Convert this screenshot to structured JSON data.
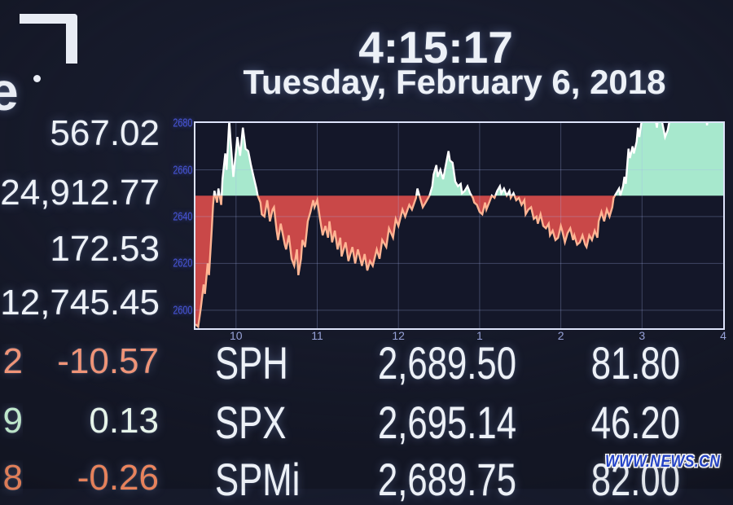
{
  "header": {
    "time": "4:15:17",
    "date": "Tuesday, February 6, 2018"
  },
  "logo": {
    "partial_letter": "e",
    "name": "nyse-logo-fragment"
  },
  "left_stats": [
    {
      "value": "567.02"
    },
    {
      "value": "24,912.77"
    },
    {
      "value": "172.53"
    },
    {
      "value": "12,745.45"
    }
  ],
  "left_changes": [
    {
      "partial": "2",
      "value": "-10.57",
      "tone": "salmon"
    },
    {
      "partial": "9",
      "value": "0.13",
      "tone": "up"
    },
    {
      "partial": "8",
      "value": "-0.26",
      "tone": "orange"
    }
  ],
  "quotes": {
    "rows": [
      {
        "symbol": "SPH",
        "last": "2,689.50",
        "change": "81.80"
      },
      {
        "symbol": "SPX",
        "last": "2,695.14",
        "change": "46.20"
      },
      {
        "symbol": "SPMi",
        "last": "2,689.75",
        "change": "82.00"
      }
    ]
  },
  "watermark": "WWW.NEWS.CN",
  "colors": {
    "background": "#131624",
    "text_white": "#edf1f7",
    "negative_salmon": "#ef9478",
    "negative_orange": "#f0875f",
    "positive_green_white": "#e6f4ea",
    "axis_y_blue": "#4754d6",
    "axis_x_lavender": "#97a2d8",
    "watermark_blue": "#2545cc"
  },
  "chart_data": {
    "type": "area",
    "title": "",
    "xlabel": "",
    "ylabel": "",
    "x_axis": {
      "labels": [
        "10",
        "11",
        "12",
        "1",
        "2",
        "3",
        "4"
      ],
      "label_minutes": [
        30,
        90,
        150,
        210,
        270,
        330,
        390
      ],
      "grid_minutes": [
        30,
        90,
        150,
        210,
        270,
        330
      ],
      "start_minutes": 0,
      "end_minutes": 390,
      "session": "9:30 to 4:00"
    },
    "y_axis": {
      "labels": [
        "2680",
        "2660",
        "2640",
        "2620",
        "2600"
      ],
      "label_values": [
        2680,
        2660,
        2640,
        2620,
        2600
      ],
      "grid_values": [
        2660,
        2640,
        2620,
        2600
      ],
      "top_value": 2680,
      "bottom_value": 2592.3
    },
    "baseline": 2648.94,
    "colors": {
      "plot_bg": "#141729",
      "border": "#dde3fa",
      "grid": "rgba(165,180,235,0.30)",
      "fill_above": "#a7e8cd",
      "fill_below": "#c94848",
      "line_above": "#ffffff",
      "line_below": "#ffb493"
    },
    "points": [
      [
        0,
        2594
      ],
      [
        2,
        2593
      ],
      [
        4,
        2601
      ],
      [
        6,
        2611
      ],
      [
        7,
        2607
      ],
      [
        9,
        2620
      ],
      [
        10,
        2615
      ],
      [
        12,
        2634
      ],
      [
        13,
        2645
      ],
      [
        14,
        2651
      ],
      [
        16,
        2646
      ],
      [
        17,
        2652
      ],
      [
        19,
        2645
      ],
      [
        20,
        2656
      ],
      [
        22,
        2667
      ],
      [
        23,
        2660
      ],
      [
        25,
        2681
      ],
      [
        26,
        2672
      ],
      [
        28,
        2657
      ],
      [
        30,
        2668
      ],
      [
        31,
        2674
      ],
      [
        33,
        2666
      ],
      [
        35,
        2678
      ],
      [
        37,
        2669
      ],
      [
        39,
        2668
      ],
      [
        41,
        2662
      ],
      [
        43,
        2657
      ],
      [
        45,
        2652
      ],
      [
        46,
        2649
      ],
      [
        48,
        2646
      ],
      [
        49,
        2641
      ],
      [
        51,
        2640
      ],
      [
        53,
        2647
      ],
      [
        55,
        2638
      ],
      [
        57,
        2643
      ],
      [
        58,
        2644
      ],
      [
        60,
        2634
      ],
      [
        61,
        2630
      ],
      [
        63,
        2637
      ],
      [
        66,
        2628
      ],
      [
        67,
        2626
      ],
      [
        69,
        2632
      ],
      [
        71,
        2622
      ],
      [
        73,
        2619
      ],
      [
        75,
        2626
      ],
      [
        76,
        2615
      ],
      [
        78,
        2622
      ],
      [
        79,
        2630
      ],
      [
        81,
        2627
      ],
      [
        83,
        2638
      ],
      [
        85,
        2642
      ],
      [
        87,
        2647
      ],
      [
        88,
        2644
      ],
      [
        90,
        2647
      ],
      [
        92,
        2639
      ],
      [
        94,
        2632
      ],
      [
        96,
        2636
      ],
      [
        98,
        2631
      ],
      [
        99,
        2638
      ],
      [
        101,
        2629
      ],
      [
        103,
        2634
      ],
      [
        105,
        2626
      ],
      [
        107,
        2631
      ],
      [
        108,
        2623
      ],
      [
        111,
        2629
      ],
      [
        113,
        2621
      ],
      [
        116,
        2627
      ],
      [
        118,
        2620
      ],
      [
        120,
        2626
      ],
      [
        123,
        2619
      ],
      [
        125,
        2624
      ],
      [
        127,
        2617
      ],
      [
        129,
        2621
      ],
      [
        131,
        2619
      ],
      [
        134,
        2626
      ],
      [
        136,
        2622
      ],
      [
        138,
        2630
      ],
      [
        141,
        2627
      ],
      [
        143,
        2635
      ],
      [
        146,
        2631
      ],
      [
        148,
        2639
      ],
      [
        150,
        2636
      ],
      [
        153,
        2643
      ],
      [
        155,
        2640
      ],
      [
        158,
        2645
      ],
      [
        160,
        2643
      ],
      [
        163,
        2648
      ],
      [
        164,
        2652
      ],
      [
        166,
        2648
      ],
      [
        168,
        2644
      ],
      [
        170,
        2646
      ],
      [
        173,
        2649
      ],
      [
        175,
        2653
      ],
      [
        176,
        2658
      ],
      [
        178,
        2662
      ],
      [
        179,
        2657
      ],
      [
        181,
        2660
      ],
      [
        183,
        2656
      ],
      [
        185,
        2662
      ],
      [
        187,
        2668
      ],
      [
        188,
        2664
      ],
      [
        190,
        2663
      ],
      [
        192,
        2655
      ],
      [
        194,
        2653
      ],
      [
        196,
        2654
      ],
      [
        197,
        2650
      ],
      [
        199,
        2651
      ],
      [
        201,
        2653
      ],
      [
        203,
        2650
      ],
      [
        205,
        2648
      ],
      [
        206,
        2646
      ],
      [
        208,
        2645
      ],
      [
        210,
        2642
      ],
      [
        212,
        2641
      ],
      [
        214,
        2646
      ],
      [
        215,
        2643
      ],
      [
        217,
        2646
      ],
      [
        219,
        2649
      ],
      [
        221,
        2648
      ],
      [
        223,
        2651
      ],
      [
        225,
        2653
      ],
      [
        226,
        2650
      ],
      [
        228,
        2652
      ],
      [
        230,
        2649
      ],
      [
        232,
        2651
      ],
      [
        233,
        2648
      ],
      [
        235,
        2650
      ],
      [
        237,
        2647
      ],
      [
        239,
        2648
      ],
      [
        241,
        2645
      ],
      [
        243,
        2647
      ],
      [
        244,
        2641
      ],
      [
        246,
        2643
      ],
      [
        248,
        2644
      ],
      [
        250,
        2639
      ],
      [
        252,
        2640
      ],
      [
        253,
        2637
      ],
      [
        255,
        2641
      ],
      [
        257,
        2636
      ],
      [
        259,
        2635
      ],
      [
        261,
        2637
      ],
      [
        262,
        2632
      ],
      [
        264,
        2634
      ],
      [
        266,
        2630
      ],
      [
        268,
        2631
      ],
      [
        270,
        2636
      ],
      [
        271,
        2634
      ],
      [
        273,
        2629
      ],
      [
        275,
        2633
      ],
      [
        277,
        2635
      ],
      [
        279,
        2630
      ],
      [
        280,
        2632
      ],
      [
        282,
        2628
      ],
      [
        284,
        2629
      ],
      [
        286,
        2632
      ],
      [
        288,
        2628
      ],
      [
        289,
        2627
      ],
      [
        291,
        2632
      ],
      [
        293,
        2630
      ],
      [
        295,
        2634
      ],
      [
        297,
        2631
      ],
      [
        298,
        2638
      ],
      [
        300,
        2642
      ],
      [
        302,
        2638
      ],
      [
        304,
        2643
      ],
      [
        306,
        2640
      ],
      [
        308,
        2644
      ],
      [
        309,
        2648
      ],
      [
        311,
        2650
      ],
      [
        313,
        2652
      ],
      [
        314,
        2649
      ],
      [
        316,
        2653
      ],
      [
        317,
        2657
      ],
      [
        318,
        2654
      ],
      [
        320,
        2669
      ],
      [
        321,
        2665
      ],
      [
        323,
        2670
      ],
      [
        324,
        2667
      ],
      [
        326,
        2672
      ],
      [
        327,
        2678
      ],
      [
        328,
        2674
      ],
      [
        330,
        2682
      ],
      [
        333,
        2684
      ],
      [
        336,
        2686
      ],
      [
        339,
        2685
      ],
      [
        341,
        2678
      ],
      [
        342,
        2683
      ],
      [
        344,
        2684
      ],
      [
        345,
        2680
      ],
      [
        347,
        2674
      ],
      [
        349,
        2677
      ],
      [
        351,
        2683
      ],
      [
        354,
        2686
      ],
      [
        357,
        2687
      ],
      [
        361,
        2688
      ],
      [
        365,
        2689
      ],
      [
        368,
        2690
      ],
      [
        372,
        2691
      ],
      [
        376,
        2692
      ],
      [
        378,
        2679
      ],
      [
        380,
        2688
      ],
      [
        383,
        2691
      ],
      [
        386,
        2693
      ],
      [
        390,
        2695
      ]
    ]
  }
}
